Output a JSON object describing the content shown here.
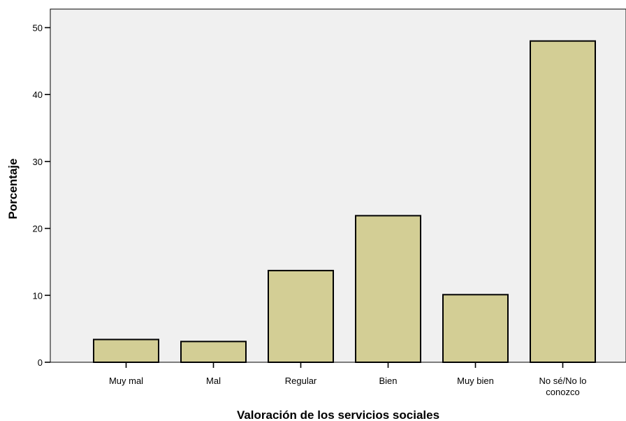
{
  "chart_data": {
    "type": "bar",
    "title": "",
    "xlabel": "Valoración de los servicios sociales",
    "ylabel": "Porcentaje",
    "categories": [
      [
        "Muy mal"
      ],
      [
        "Mal"
      ],
      [
        "Regular"
      ],
      [
        "Bien"
      ],
      [
        "Muy bien"
      ],
      [
        "No sé/No lo",
        "conozco"
      ]
    ],
    "values": [
      3.4,
      3.1,
      13.7,
      21.9,
      10.1,
      48.0
    ],
    "ylim": [
      0,
      50
    ],
    "yticks": [
      0,
      10,
      20,
      30,
      40,
      50
    ],
    "grid": false,
    "colors": {
      "plot_background": "#f0f0f0",
      "bar_fill": "#d3ce95",
      "bar_stroke": "#000000"
    }
  }
}
